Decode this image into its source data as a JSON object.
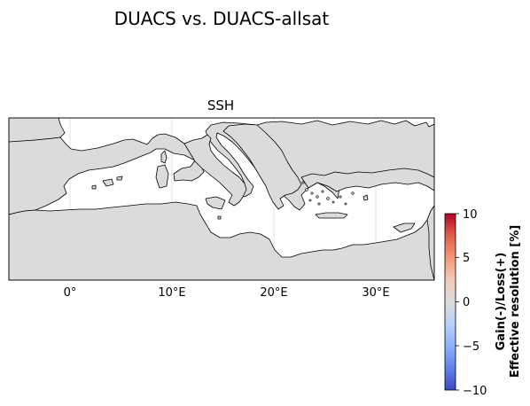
{
  "figure": {
    "suptitle": "DUACS vs. DUACS-allsat"
  },
  "map": {
    "title": "SSH",
    "region": "Mediterranean Sea",
    "lon_ticks": [
      "0°",
      "10°E",
      "20°E",
      "30°E"
    ],
    "colors": {
      "land": "#dbdbdb",
      "sea": "#ffffff",
      "coast": "#000000",
      "frame": "#000000",
      "grid": "#cfcfcf"
    }
  },
  "colorbar": {
    "label_line1": "Gain(-)/Loss(+)",
    "label_line2": "Effective resolution [%]",
    "ticks": [
      "10",
      "5",
      "0",
      "−5",
      "−10"
    ],
    "range": [
      -10,
      10
    ],
    "colormap": "coolwarm",
    "colors": {
      "max": "#b40426",
      "mid": "#dddcdc",
      "min": "#3b4cc0"
    }
  }
}
